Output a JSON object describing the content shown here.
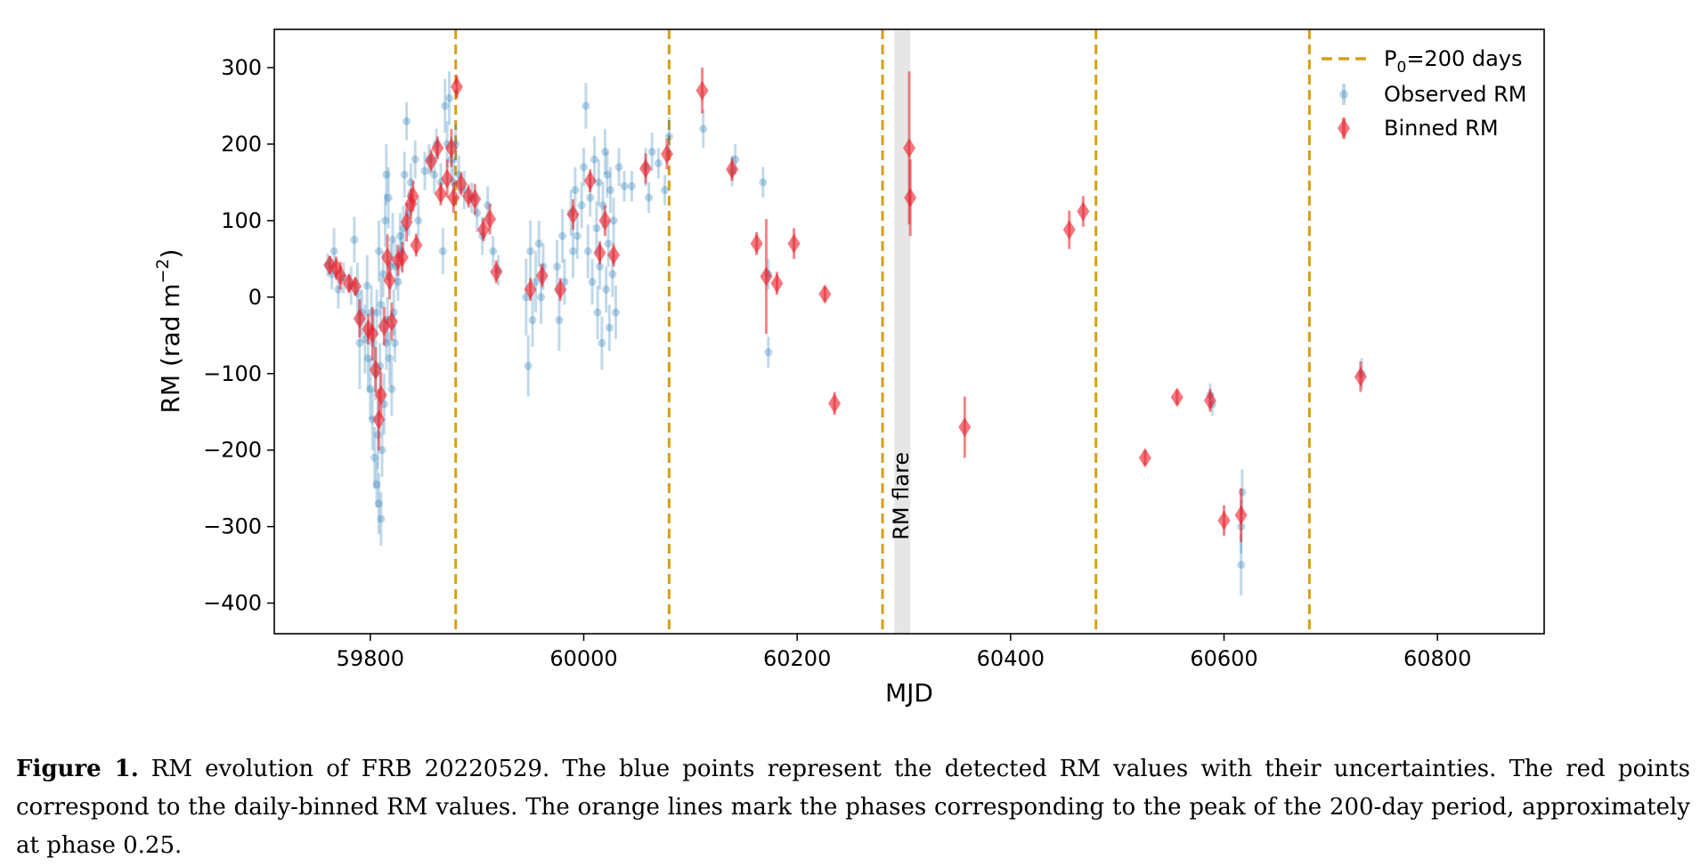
{
  "chart_data": {
    "type": "scatter",
    "xlabel": "MJD",
    "ylabel": "RM (rad m",
    "ylabel_sup": "−2",
    "ylabel_close": ")",
    "xlim": [
      59710,
      60900
    ],
    "ylim": [
      -440,
      350
    ],
    "xticks": [
      59800,
      60000,
      60200,
      60400,
      60600,
      60800
    ],
    "yticks": [
      300,
      200,
      100,
      0,
      -100,
      -200,
      -300,
      -400
    ],
    "ytick_labels": [
      "300",
      "200",
      "100",
      "0",
      "−100",
      "−200",
      "−300",
      "−400"
    ],
    "period_lines_mjd": [
      59880,
      60080,
      60280,
      60480,
      60680
    ],
    "flare": {
      "x_start": 60291,
      "x_end": 60306,
      "label": "RM flare"
    },
    "legend": {
      "position": "top-right",
      "entries": [
        {
          "label_main": "P",
          "label_sub": "0",
          "label_rest": "=200 days",
          "style": "dashed-line"
        },
        {
          "label": "Observed RM",
          "style": "blue-point"
        },
        {
          "label": "Binned RM",
          "style": "red-diamond"
        }
      ]
    },
    "colors": {
      "observed": "#1f77b4",
      "binned": "#e8202a",
      "period_line": "#d4a017",
      "flare_band": "#e6e6e6"
    },
    "series": [
      {
        "name": "Binned RM",
        "points": [
          [
            59762,
            42,
            12
          ],
          [
            59768,
            38,
            15
          ],
          [
            59772,
            28,
            18
          ],
          [
            59780,
            18,
            12
          ],
          [
            59786,
            14,
            12
          ],
          [
            59790,
            -28,
            25
          ],
          [
            59798,
            -42,
            20
          ],
          [
            59802,
            -48,
            35
          ],
          [
            59805,
            -95,
            30
          ],
          [
            59808,
            -160,
            40
          ],
          [
            59810,
            -128,
            30
          ],
          [
            59813,
            -38,
            25
          ],
          [
            59816,
            52,
            30
          ],
          [
            59818,
            22,
            25
          ],
          [
            59820,
            -32,
            25
          ],
          [
            59826,
            48,
            20
          ],
          [
            59830,
            52,
            20
          ],
          [
            59834,
            98,
            25
          ],
          [
            59838,
            122,
            20
          ],
          [
            59840,
            132,
            20
          ],
          [
            59843,
            68,
            15
          ],
          [
            59857,
            178,
            15
          ],
          [
            59863,
            195,
            15
          ],
          [
            59866,
            135,
            15
          ],
          [
            59872,
            155,
            25
          ],
          [
            59876,
            195,
            25
          ],
          [
            59878,
            130,
            20
          ],
          [
            59881,
            275,
            15
          ],
          [
            59885,
            148,
            15
          ],
          [
            59892,
            132,
            15
          ],
          [
            59898,
            128,
            20
          ],
          [
            59906,
            88,
            15
          ],
          [
            59912,
            102,
            20
          ],
          [
            59918,
            33,
            15
          ],
          [
            59950,
            10,
            15
          ],
          [
            59961,
            28,
            15
          ],
          [
            59978,
            10,
            15
          ],
          [
            59990,
            108,
            20
          ],
          [
            60006,
            152,
            15
          ],
          [
            60015,
            58,
            15
          ],
          [
            60020,
            100,
            20
          ],
          [
            60028,
            55,
            15
          ],
          [
            60058,
            168,
            20
          ],
          [
            60078,
            187,
            20
          ],
          [
            60111,
            270,
            30
          ],
          [
            60139,
            167,
            15
          ],
          [
            60162,
            70,
            15
          ],
          [
            60171,
            27,
            75
          ],
          [
            60181,
            18,
            15
          ],
          [
            60197,
            70,
            20
          ],
          [
            60226,
            4,
            10
          ],
          [
            60235,
            -139,
            15
          ],
          [
            60305,
            195,
            100
          ],
          [
            60306,
            130,
            50
          ],
          [
            60357,
            -170,
            40
          ],
          [
            60455,
            88,
            25
          ],
          [
            60468,
            112,
            20
          ],
          [
            60526,
            -210,
            10
          ],
          [
            60556,
            -131,
            10
          ],
          [
            60587,
            -135,
            15
          ],
          [
            60600,
            -292,
            20
          ],
          [
            60616,
            -285,
            35
          ],
          [
            60728,
            -104,
            20
          ]
        ]
      },
      {
        "name": "Observed RM",
        "points": [
          [
            59760,
            42,
            15
          ],
          [
            59764,
            30,
            20
          ],
          [
            59766,
            60,
            30
          ],
          [
            59770,
            10,
            25
          ],
          [
            59775,
            25,
            20
          ],
          [
            59782,
            15,
            25
          ],
          [
            59785,
            75,
            30
          ],
          [
            59788,
            5,
            40
          ],
          [
            59790,
            -60,
            60
          ],
          [
            59792,
            -20,
            30
          ],
          [
            59795,
            -55,
            45
          ],
          [
            59797,
            15,
            40
          ],
          [
            59798,
            -80,
            45
          ],
          [
            59800,
            -120,
            40
          ],
          [
            59801,
            -20,
            35
          ],
          [
            59802,
            -160,
            40
          ],
          [
            59803,
            -60,
            35
          ],
          [
            59804,
            -210,
            40
          ],
          [
            59805,
            -100,
            35
          ],
          [
            59806,
            -245,
            30
          ],
          [
            59806,
            -20,
            30
          ],
          [
            59807,
            -180,
            45
          ],
          [
            59808,
            -270,
            40
          ],
          [
            59808,
            60,
            40
          ],
          [
            59809,
            -90,
            30
          ],
          [
            59810,
            -290,
            35
          ],
          [
            59810,
            -10,
            35
          ],
          [
            59811,
            -200,
            35
          ],
          [
            59812,
            30,
            30
          ],
          [
            59813,
            -140,
            40
          ],
          [
            59814,
            100,
            35
          ],
          [
            59815,
            -60,
            35
          ],
          [
            59815,
            160,
            40
          ],
          [
            59816,
            -30,
            30
          ],
          [
            59817,
            130,
            40
          ],
          [
            59818,
            -80,
            35
          ],
          [
            59819,
            40,
            30
          ],
          [
            59820,
            -120,
            35
          ],
          [
            59821,
            75,
            35
          ],
          [
            59822,
            -20,
            30
          ],
          [
            59823,
            -60,
            25
          ],
          [
            59824,
            40,
            30
          ],
          [
            59826,
            20,
            25
          ],
          [
            59828,
            80,
            30
          ],
          [
            59829,
            60,
            25
          ],
          [
            59831,
            90,
            30
          ],
          [
            59832,
            160,
            30
          ],
          [
            59834,
            230,
            25
          ],
          [
            59836,
            110,
            30
          ],
          [
            59838,
            150,
            25
          ],
          [
            59842,
            180,
            25
          ],
          [
            59845,
            100,
            30
          ],
          [
            59851,
            165,
            25
          ],
          [
            59855,
            180,
            20
          ],
          [
            59860,
            160,
            25
          ],
          [
            59862,
            200,
            20
          ],
          [
            59866,
            150,
            25
          ],
          [
            59868,
            60,
            30
          ],
          [
            59870,
            250,
            35
          ],
          [
            59872,
            200,
            30
          ],
          [
            59874,
            260,
            35
          ],
          [
            59876,
            180,
            30
          ],
          [
            59878,
            150,
            30
          ],
          [
            59880,
            200,
            25
          ],
          [
            59883,
            160,
            25
          ],
          [
            59888,
            140,
            25
          ],
          [
            59895,
            130,
            20
          ],
          [
            59900,
            110,
            25
          ],
          [
            59905,
            80,
            25
          ],
          [
            59910,
            120,
            25
          ],
          [
            59915,
            60,
            20
          ],
          [
            59920,
            35,
            20
          ],
          [
            59946,
            0,
            50
          ],
          [
            59948,
            -90,
            40
          ],
          [
            59950,
            60,
            40
          ],
          [
            59952,
            -30,
            35
          ],
          [
            59955,
            20,
            40
          ],
          [
            59958,
            70,
            30
          ],
          [
            59960,
            0,
            35
          ],
          [
            59962,
            40,
            30
          ],
          [
            59975,
            40,
            35
          ],
          [
            59977,
            -30,
            40
          ],
          [
            59980,
            80,
            35
          ],
          [
            59982,
            20,
            30
          ],
          [
            59988,
            110,
            30
          ],
          [
            59990,
            60,
            35
          ],
          [
            59992,
            140,
            30
          ],
          [
            59994,
            80,
            30
          ],
          [
            59998,
            120,
            30
          ],
          [
            60000,
            170,
            25
          ],
          [
            60002,
            250,
            30
          ],
          [
            60004,
            60,
            35
          ],
          [
            60006,
            130,
            25
          ],
          [
            60008,
            20,
            30
          ],
          [
            60010,
            180,
            30
          ],
          [
            60012,
            90,
            35
          ],
          [
            60013,
            -20,
            35
          ],
          [
            60014,
            150,
            30
          ],
          [
            60015,
            40,
            30
          ],
          [
            60017,
            -60,
            35
          ],
          [
            60018,
            120,
            30
          ],
          [
            60020,
            190,
            30
          ],
          [
            60021,
            10,
            30
          ],
          [
            60022,
            160,
            30
          ],
          [
            60023,
            70,
            30
          ],
          [
            60024,
            -40,
            30
          ],
          [
            60025,
            140,
            30
          ],
          [
            60027,
            30,
            30
          ],
          [
            60028,
            100,
            30
          ],
          [
            60030,
            -20,
            35
          ],
          [
            60033,
            170,
            25
          ],
          [
            60038,
            145,
            20
          ],
          [
            60045,
            145,
            20
          ],
          [
            60058,
            170,
            25
          ],
          [
            60061,
            130,
            20
          ],
          [
            60064,
            190,
            25
          ],
          [
            60070,
            175,
            20
          ],
          [
            60076,
            140,
            20
          ],
          [
            60080,
            210,
            25
          ],
          [
            60112,
            220,
            25
          ],
          [
            60139,
            165,
            20
          ],
          [
            60142,
            180,
            20
          ],
          [
            60168,
            150,
            20
          ],
          [
            60173,
            -72,
            20
          ],
          [
            60173,
            30,
            20
          ],
          [
            60587,
            -128,
            15
          ],
          [
            60589,
            -140,
            15
          ],
          [
            60616,
            -300,
            35
          ],
          [
            60616,
            -350,
            40
          ],
          [
            60617,
            -255,
            30
          ],
          [
            60729,
            -100,
            20
          ]
        ]
      }
    ]
  },
  "caption": {
    "label": "Figure 1.",
    "text": "RM evolution of FRB 20220529. The blue points represent the detected RM values with their uncertainties. The red points correspond to the daily-binned RM values. The orange lines mark the phases corresponding to the peak of the 200-day period, approximately at phase 0.25."
  }
}
